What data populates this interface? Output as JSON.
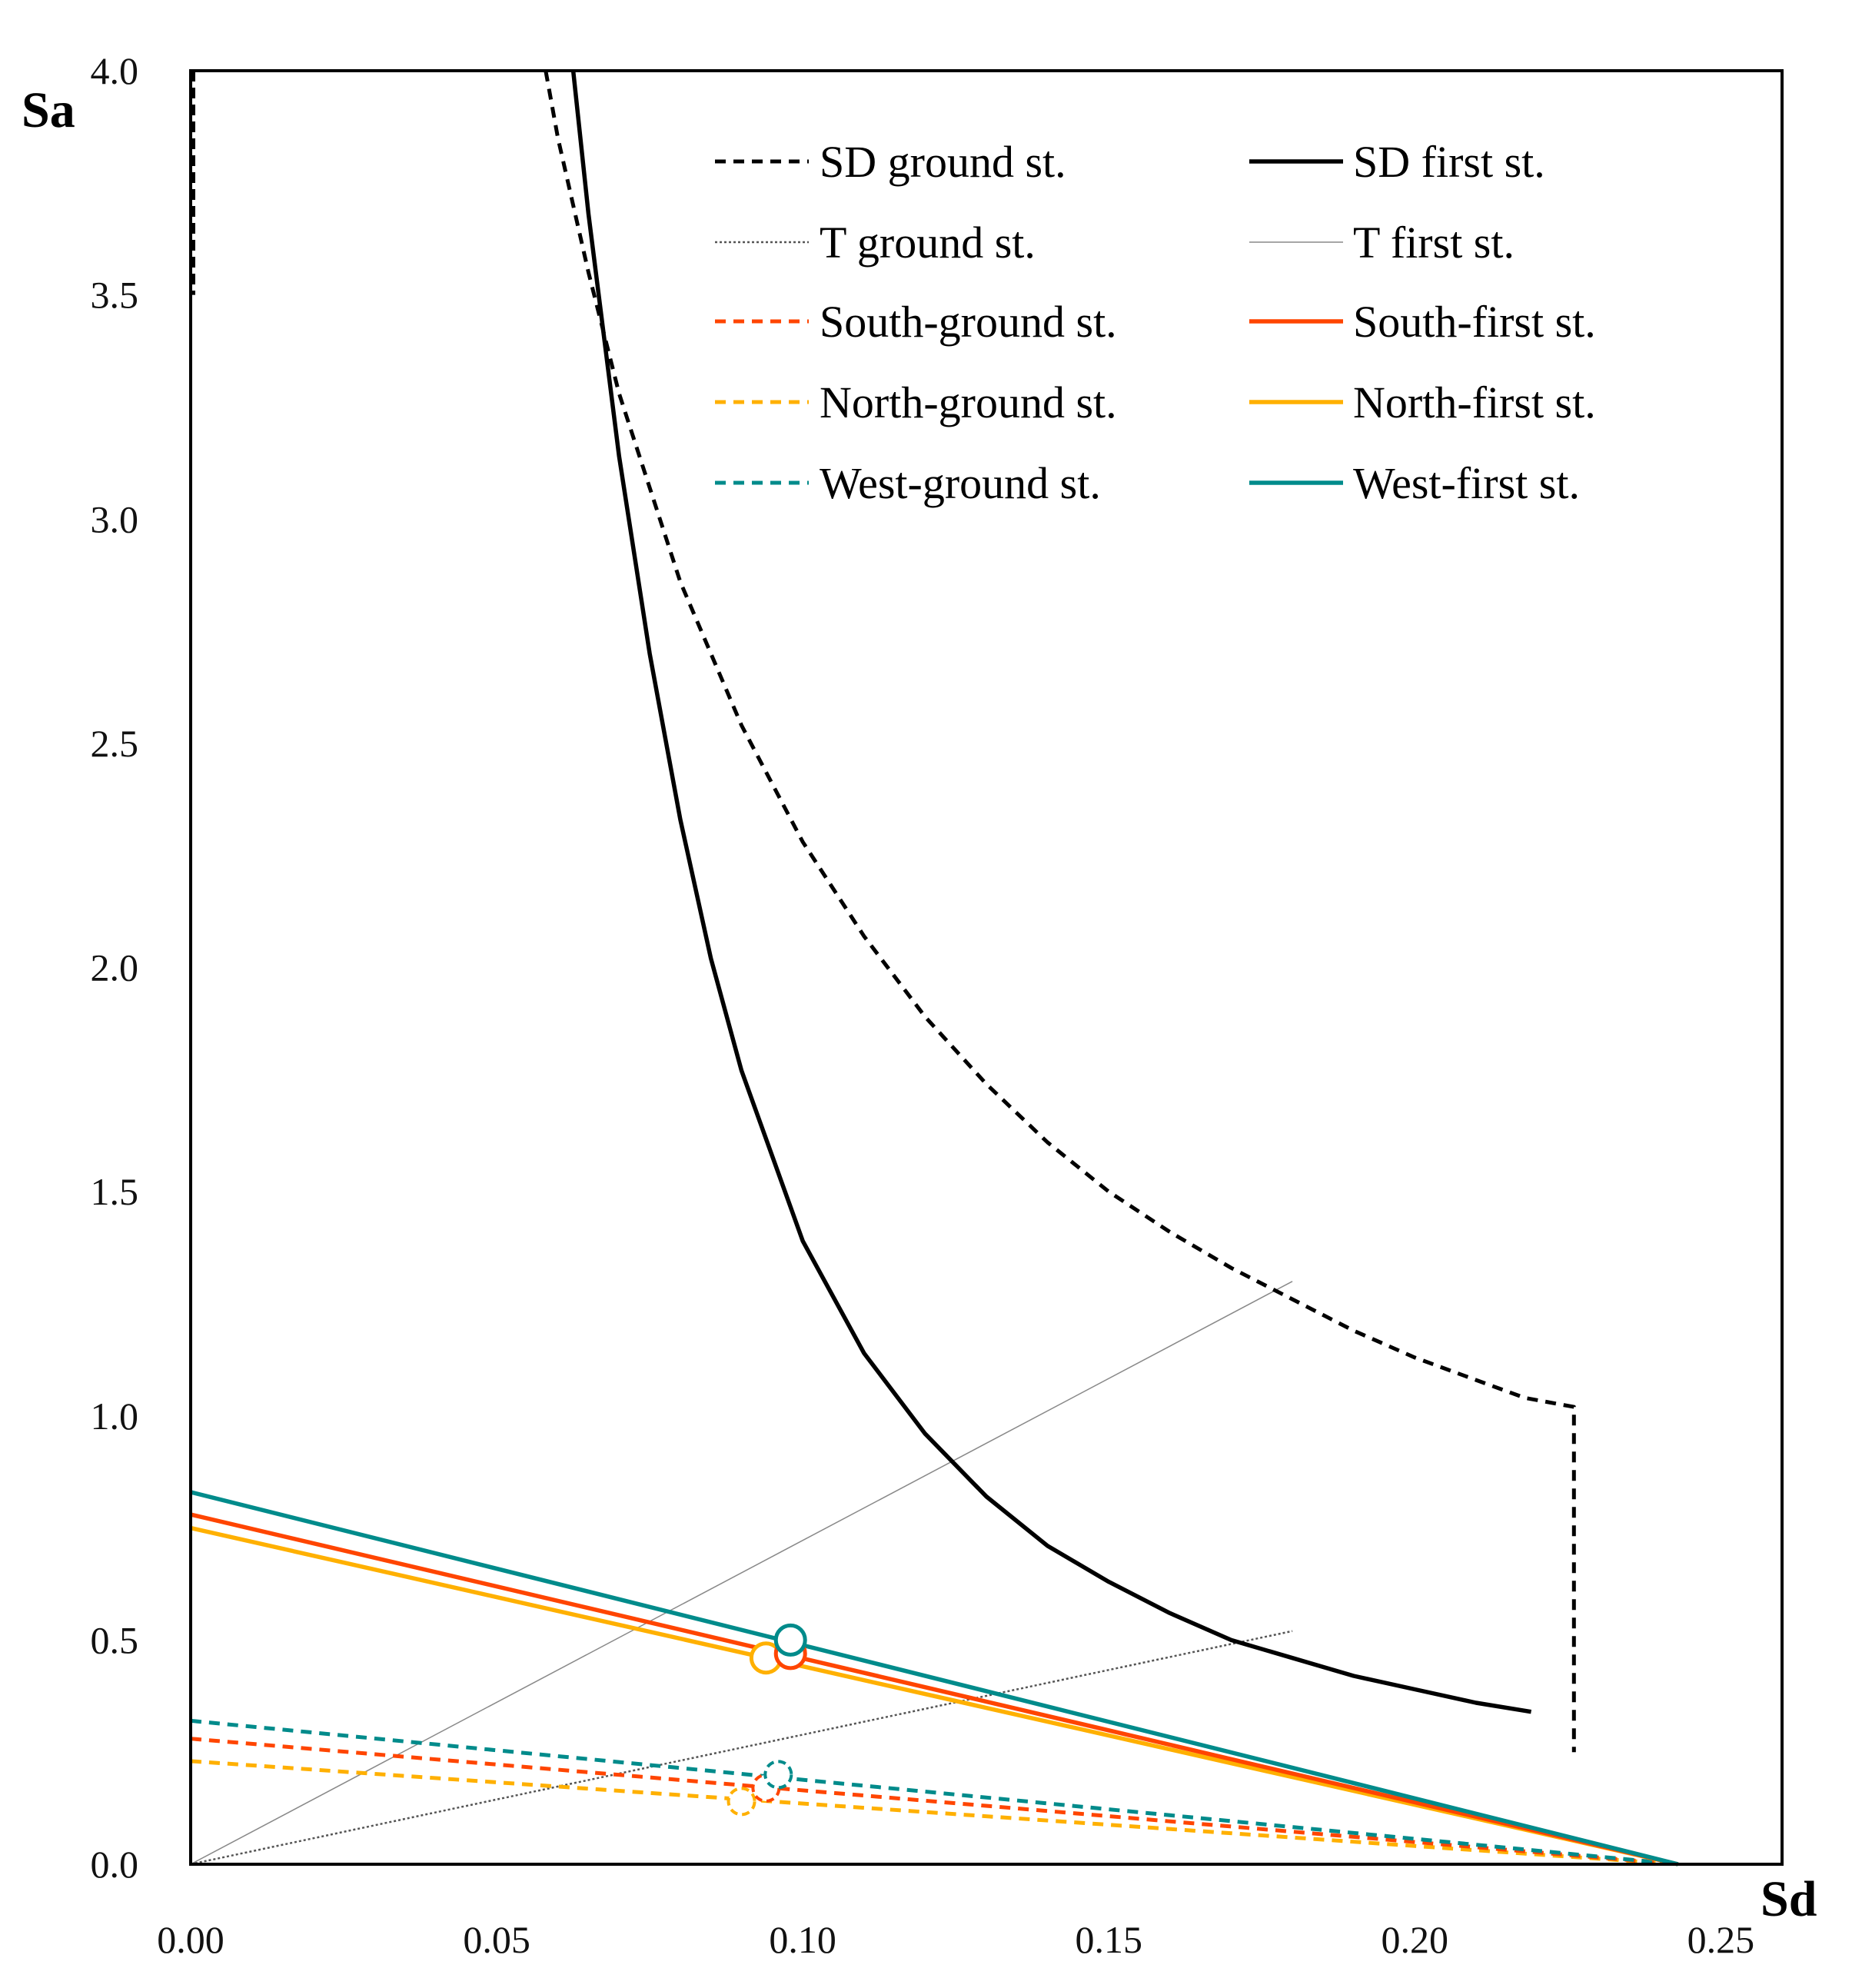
{
  "chart_data": {
    "type": "line",
    "title": "",
    "xlabel": "Sd",
    "ylabel": "Sa",
    "xlim": [
      0,
      0.26
    ],
    "ylim": [
      0,
      4.0
    ],
    "grid": false,
    "legend_position": "top-right",
    "x_ticks": [
      "0.00",
      "0.05",
      "0.10",
      "0.15",
      "0.20",
      "0.25"
    ],
    "y_ticks": [
      "0.0",
      "0.5",
      "1.0",
      "1.5",
      "2.0",
      "2.5",
      "3.0",
      "3.5",
      "4.0"
    ],
    "series": [
      {
        "name": "SD ground st.",
        "style": "dashed",
        "color": "#000000",
        "kind": "hyperbola",
        "points": [
          [
            0.058,
            4.0
          ],
          [
            0.06,
            3.85
          ],
          [
            0.065,
            3.55
          ],
          [
            0.07,
            3.28
          ],
          [
            0.08,
            2.86
          ],
          [
            0.09,
            2.54
          ],
          [
            0.1,
            2.28
          ],
          [
            0.11,
            2.07
          ],
          [
            0.12,
            1.89
          ],
          [
            0.13,
            1.74
          ],
          [
            0.14,
            1.61
          ],
          [
            0.15,
            1.5
          ],
          [
            0.16,
            1.41
          ],
          [
            0.17,
            1.33
          ],
          [
            0.18,
            1.26
          ],
          [
            0.19,
            1.19
          ],
          [
            0.2,
            1.13
          ],
          [
            0.21,
            1.08
          ],
          [
            0.218,
            1.04
          ],
          [
            0.226,
            1.02
          ],
          [
            0.226,
            0.25
          ]
        ]
      },
      {
        "name": "SD first st.",
        "style": "solid",
        "color": "#000000",
        "kind": "hyperbola",
        "points": [
          [
            0.0625,
            4.0
          ],
          [
            0.065,
            3.68
          ],
          [
            0.07,
            3.14
          ],
          [
            0.075,
            2.7
          ],
          [
            0.08,
            2.33
          ],
          [
            0.085,
            2.02
          ],
          [
            0.09,
            1.77
          ],
          [
            0.1,
            1.39
          ],
          [
            0.11,
            1.14
          ],
          [
            0.12,
            0.96
          ],
          [
            0.13,
            0.82
          ],
          [
            0.14,
            0.71
          ],
          [
            0.15,
            0.63
          ],
          [
            0.16,
            0.56
          ],
          [
            0.17,
            0.5
          ],
          [
            0.18,
            0.46
          ],
          [
            0.19,
            0.42
          ],
          [
            0.2,
            0.39
          ],
          [
            0.21,
            0.36
          ],
          [
            0.219,
            0.34
          ]
        ]
      },
      {
        "name": "T ground st.",
        "style": "dotted",
        "color": "#555555",
        "kind": "line",
        "points": [
          [
            0,
            0
          ],
          [
            0.18,
            0.52
          ]
        ]
      },
      {
        "name": "T first st.",
        "style": "thin",
        "color": "#888888",
        "kind": "line",
        "points": [
          [
            0,
            0
          ],
          [
            0.18,
            1.3
          ]
        ]
      },
      {
        "name": "South-ground st.",
        "style": "dashed",
        "color": "#FF4500",
        "kind": "line",
        "points": [
          [
            0,
            0.28
          ],
          [
            0.243,
            0
          ]
        ],
        "marker": [
          0.094,
          0.17
        ]
      },
      {
        "name": "South-first st.",
        "style": "solid",
        "color": "#FF4500",
        "kind": "line",
        "points": [
          [
            0,
            0.78
          ],
          [
            0.243,
            0
          ]
        ],
        "marker": [
          0.098,
          0.47
        ]
      },
      {
        "name": "North-ground st.",
        "style": "dashed",
        "color": "#FFB000",
        "kind": "line",
        "points": [
          [
            0,
            0.23
          ],
          [
            0.243,
            0
          ]
        ],
        "marker": [
          0.09,
          0.14
        ]
      },
      {
        "name": "North-first st.",
        "style": "solid",
        "color": "#FFB000",
        "kind": "line",
        "points": [
          [
            0,
            0.75
          ],
          [
            0.243,
            0
          ]
        ],
        "marker": [
          0.094,
          0.46
        ]
      },
      {
        "name": "West-ground st.",
        "style": "dashed",
        "color": "#008B8B",
        "kind": "line",
        "points": [
          [
            0,
            0.32
          ],
          [
            0.243,
            0
          ]
        ],
        "marker": [
          0.096,
          0.2
        ]
      },
      {
        "name": "West-first st.",
        "style": "solid",
        "color": "#008B8B",
        "kind": "line",
        "points": [
          [
            0,
            0.83
          ],
          [
            0.243,
            0
          ]
        ],
        "marker": [
          0.098,
          0.5
        ]
      }
    ]
  }
}
